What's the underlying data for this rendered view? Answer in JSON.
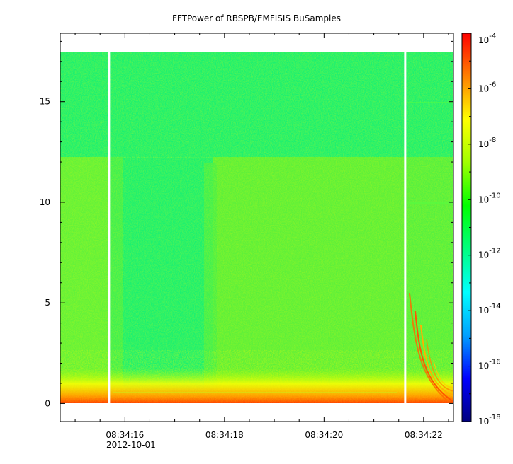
{
  "chart_data": {
    "type": "heatmap",
    "title": "FFTPower of RBSPB/EMFISIS  BuSamples",
    "x": {
      "ticks": [
        "08:34:16",
        "08:34:18",
        "08:34:20",
        "08:34:22"
      ],
      "date_label": "2012-10-01",
      "range_seconds": [
        14.7,
        22.6
      ]
    },
    "y": {
      "ticks": [
        "0",
        "5",
        "10",
        "15"
      ],
      "range": [
        -0.9,
        18.4
      ]
    },
    "colorbar": {
      "scale": "log",
      "range_exponent": [
        -18,
        -4
      ],
      "tick_exponents": [
        "-4",
        "-6",
        "-8",
        "-10",
        "-12",
        "-14",
        "-16",
        "-18"
      ],
      "colormap": [
        "#00007f",
        "#0000ff",
        "#00a0ff",
        "#00ffff",
        "#00ff80",
        "#00ff00",
        "#a0ff00",
        "#ffff00",
        "#ff8000",
        "#ff0000"
      ]
    },
    "data_gaps_seconds": [
      15.68,
      21.63
    ],
    "background_level_exponent": -12,
    "high_level_region": {
      "x_range_seconds": [
        14.7,
        22.6
      ],
      "y_max": 12.2
    }
  }
}
